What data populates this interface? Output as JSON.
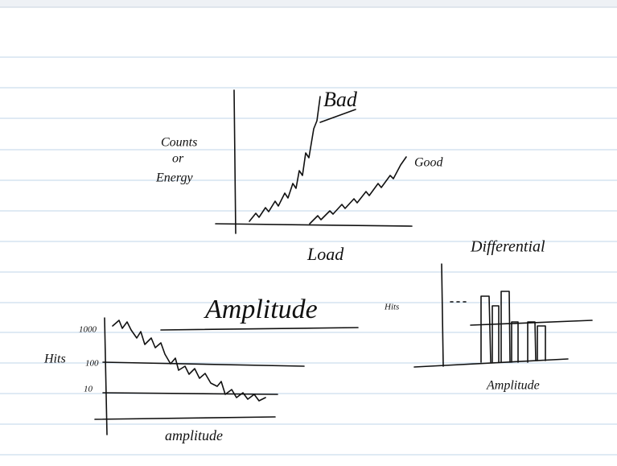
{
  "load_sketch": {
    "y_label": [
      "Counts",
      "or",
      "Energy"
    ],
    "x_label": "Load",
    "curves": [
      "Bad",
      "Good"
    ]
  },
  "heading": "Amplitude",
  "hits_sketch": {
    "y_label": "Hits",
    "y_ticks": [
      "1000",
      "100",
      "10"
    ],
    "x_label": "amplitude"
  },
  "differential_sketch": {
    "title": "Differential",
    "y_label": "Hits",
    "x_label": "Amplitude"
  }
}
